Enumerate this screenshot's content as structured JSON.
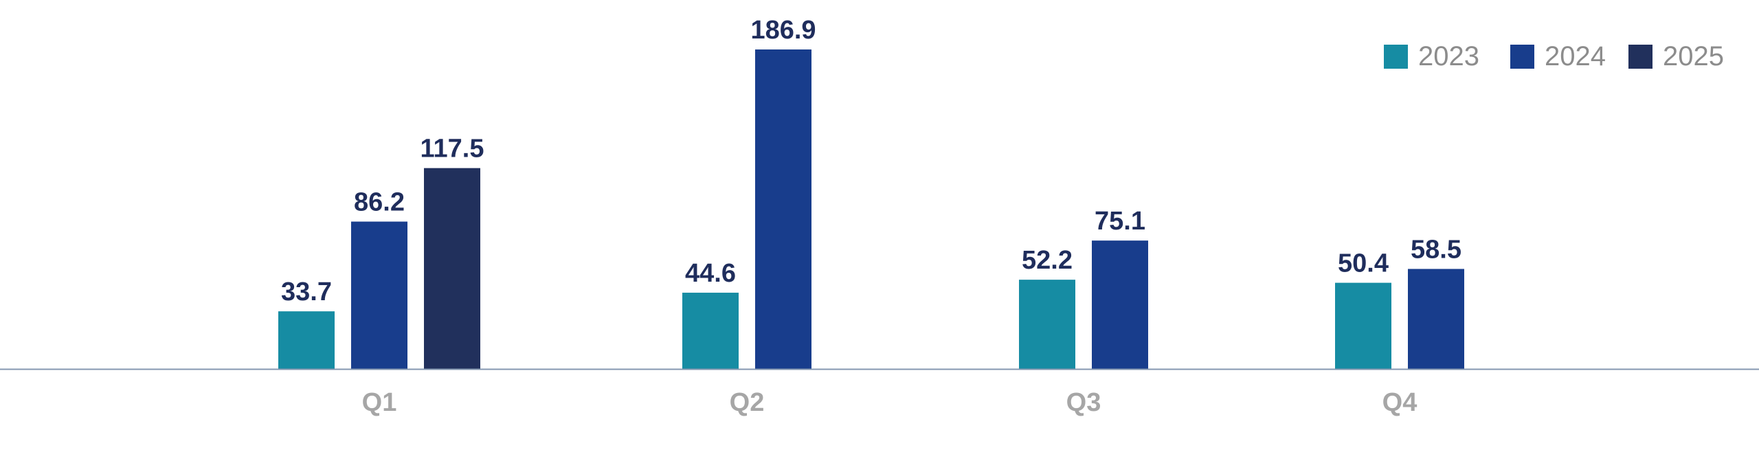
{
  "chart_data": {
    "type": "bar",
    "categories": [
      "Q1",
      "Q2",
      "Q3",
      "Q4"
    ],
    "series": [
      {
        "name": "2023",
        "color": "#168CA3",
        "values": [
          33.7,
          44.6,
          52.2,
          50.4
        ]
      },
      {
        "name": "2024",
        "color": "#183D8C",
        "values": [
          86.2,
          186.9,
          75.1,
          58.5
        ]
      },
      {
        "name": "2025",
        "color": "#21305C",
        "values": [
          117.5,
          null,
          null,
          null
        ]
      }
    ],
    "title": "",
    "xlabel": "",
    "ylabel": "",
    "ylim": [
      0,
      186.9
    ],
    "grid": false,
    "legend": "top-right",
    "colors": {
      "data_label": "#1F2D5C",
      "category_label": "#A6A6A6",
      "legend_text": "#8C8C8C",
      "axis_line": "#8497B0"
    }
  }
}
